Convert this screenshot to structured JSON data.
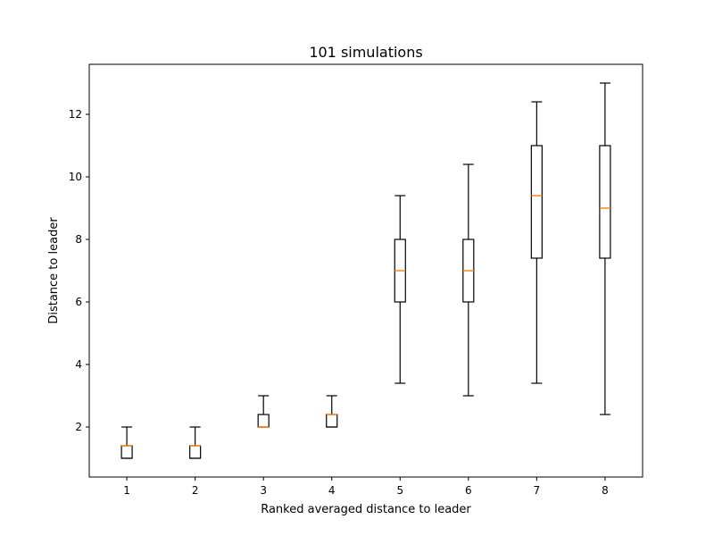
{
  "chart_data": {
    "type": "boxplot",
    "title": "101 simulations",
    "xlabel": "Ranked averaged distance to leader",
    "ylabel": "Distance to leader",
    "categories": [
      "1",
      "2",
      "3",
      "4",
      "5",
      "6",
      "7",
      "8"
    ],
    "yticks": [
      2,
      4,
      6,
      8,
      10,
      12
    ],
    "ylim": [
      0.4,
      13.6
    ],
    "grid": false,
    "boxes": [
      {
        "category": "1",
        "whisker_low": 1.0,
        "q1": 1.0,
        "median": 1.4,
        "q3": 1.4,
        "whisker_high": 2.0
      },
      {
        "category": "2",
        "whisker_low": 1.0,
        "q1": 1.0,
        "median": 1.4,
        "q3": 1.4,
        "whisker_high": 2.0
      },
      {
        "category": "3",
        "whisker_low": 2.0,
        "q1": 2.0,
        "median": 2.0,
        "q3": 2.4,
        "whisker_high": 3.0
      },
      {
        "category": "4",
        "whisker_low": 2.0,
        "q1": 2.0,
        "median": 2.4,
        "q3": 2.4,
        "whisker_high": 3.0
      },
      {
        "category": "5",
        "whisker_low": 3.4,
        "q1": 6.0,
        "median": 7.0,
        "q3": 8.0,
        "whisker_high": 9.4
      },
      {
        "category": "6",
        "whisker_low": 3.0,
        "q1": 6.0,
        "median": 7.0,
        "q3": 8.0,
        "whisker_high": 10.4
      },
      {
        "category": "7",
        "whisker_low": 3.4,
        "q1": 7.4,
        "median": 9.4,
        "q3": 11.0,
        "whisker_high": 12.4
      },
      {
        "category": "8",
        "whisker_low": 2.4,
        "q1": 7.4,
        "median": 9.0,
        "q3": 11.0,
        "whisker_high": 13.0
      }
    ],
    "colors": {
      "box": "#000000",
      "median": "#ff7f0e",
      "axes": "#000000"
    }
  }
}
